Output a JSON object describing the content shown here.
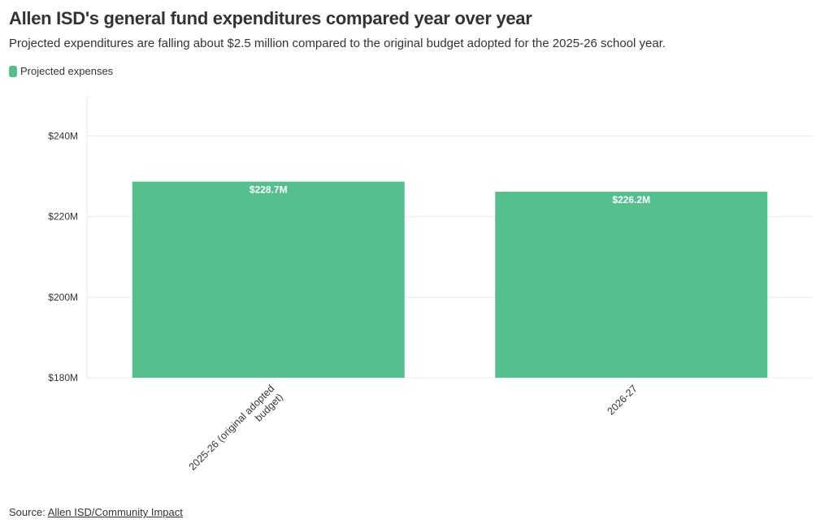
{
  "title": "Allen ISD's general fund expenditures compared year over year",
  "subtitle": "Projected expenditures are falling about $2.5 million compared to the original budget adopted for the 2025-26 school year.",
  "legend": {
    "label": "Projected expenses",
    "color": "#55c08e"
  },
  "source": {
    "prefix": "Source: ",
    "link_text": "Allen ISD/Community Impact"
  },
  "chart_data": {
    "type": "bar",
    "categories": [
      "2025-26 (original adopted budget)",
      "2026-27"
    ],
    "category_lines": [
      [
        "2025-26 (original adopted",
        "budget)"
      ],
      [
        "2026-27"
      ]
    ],
    "series": [
      {
        "name": "Projected expenses",
        "values": [
          228.7,
          226.2
        ],
        "labels": [
          "$228.7M",
          "$226.2M"
        ],
        "color": "#55c08e"
      }
    ],
    "ylim": [
      180,
      250
    ],
    "yticks": [
      180,
      200,
      220,
      240
    ],
    "ytick_labels": [
      "$180M",
      "$200M",
      "$220M",
      "$240M"
    ],
    "xlabel": "",
    "ylabel": "",
    "grid": true,
    "legend_position": "top-left"
  }
}
